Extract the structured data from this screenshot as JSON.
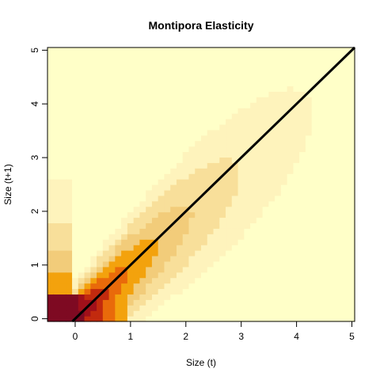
{
  "chart_data": {
    "type": "heatmap",
    "title": "Montipora Elasticity",
    "xlabel": "Size (t)",
    "ylabel": "Size (t+1)",
    "xlim": [
      -0.5,
      5.05
    ],
    "ylim": [
      -0.05,
      5.05
    ],
    "xticks": [
      0,
      1,
      2,
      3,
      4,
      5
    ],
    "yticks": [
      0,
      1,
      2,
      3,
      4,
      5
    ],
    "grid": false,
    "legend": "none",
    "colors": {
      "lightest": "#FFFFC8",
      "light": "#FEF3BC",
      "pale": "#F8DF9A",
      "tan": "#F2CC7A",
      "orange": "#F3A20D",
      "deep_orange": "#E96A0A",
      "red": "#C22A0E",
      "dark_red": "#A0101A",
      "maroon": "#7E0A22",
      "identity_line": "#000000"
    },
    "identity_line": {
      "x": [
        -0.05,
        5.05
      ],
      "y": [
        -0.05,
        5.05
      ]
    }
  }
}
